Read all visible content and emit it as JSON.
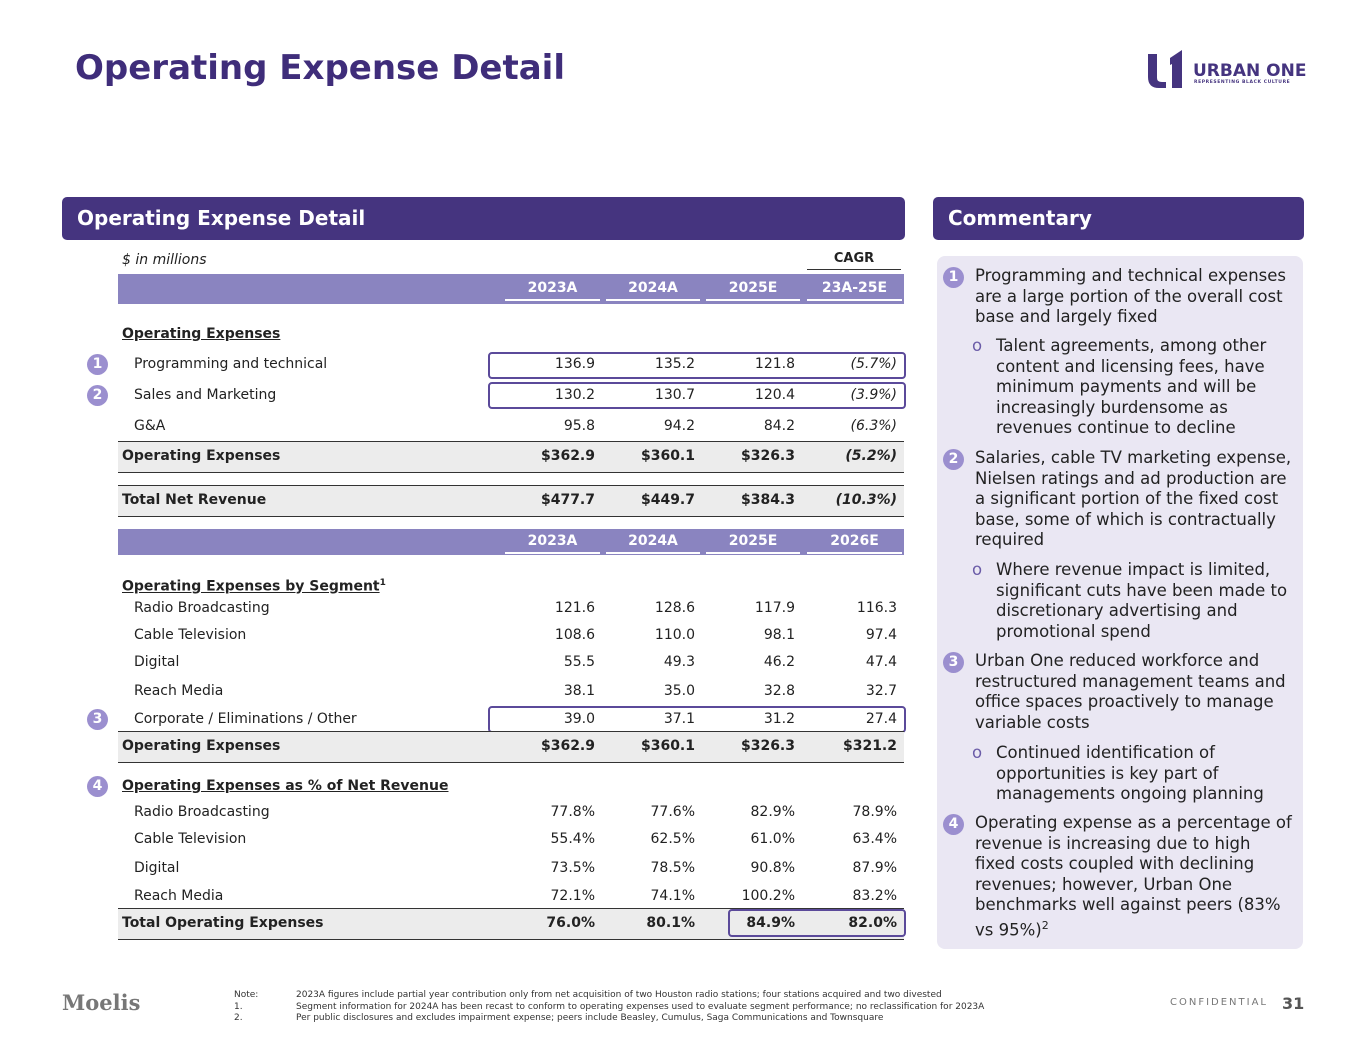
{
  "title": "Operating Expense Detail",
  "logo": {
    "name": "URBAN ONE",
    "tagline": "REPRESENTING BLACK CULTURE"
  },
  "left_panel": {
    "header": "Operating Expense Detail",
    "units": "$ in millions",
    "cagr_label": "CAGR",
    "table1": {
      "columns": [
        "2023A",
        "2024A",
        "2025E",
        "23A-25E"
      ],
      "heading": "Operating Expenses",
      "rows": [
        {
          "badge": "1",
          "label": "Programming and technical",
          "values": [
            "136.9",
            "135.2",
            "121.8",
            "(5.7%)"
          ]
        },
        {
          "badge": "2",
          "label": "Sales and Marketing",
          "values": [
            "130.2",
            "130.7",
            "120.4",
            "(3.9%)"
          ]
        },
        {
          "label": "G&A",
          "values": [
            "95.8",
            "94.2",
            "84.2",
            "(6.3%)"
          ]
        }
      ],
      "total": {
        "label": "Operating Expenses",
        "values": [
          "$362.9",
          "$360.1",
          "$326.3",
          "(5.2%)"
        ]
      },
      "revenue": {
        "label": "Total Net Revenue",
        "values": [
          "$477.7",
          "$449.7",
          "$384.3",
          "(10.3%)"
        ]
      }
    },
    "table2": {
      "columns": [
        "2023A",
        "2024A",
        "2025E",
        "2026E"
      ],
      "segment": {
        "heading": "Operating Expenses by Segment",
        "footnote": "1",
        "rows": [
          {
            "label": "Radio Broadcasting",
            "values": [
              "121.6",
              "128.6",
              "117.9",
              "116.3"
            ]
          },
          {
            "label": "Cable Television",
            "values": [
              "108.6",
              "110.0",
              "98.1",
              "97.4"
            ]
          },
          {
            "label": "Digital",
            "values": [
              "55.5",
              "49.3",
              "46.2",
              "47.4"
            ]
          },
          {
            "label": "Reach Media",
            "values": [
              "38.1",
              "35.0",
              "32.8",
              "32.7"
            ]
          },
          {
            "badge": "3",
            "label": "Corporate / Eliminations / Other",
            "values": [
              "39.0",
              "37.1",
              "31.2",
              "27.4"
            ]
          }
        ],
        "total": {
          "label": "Operating Expenses",
          "values": [
            "$362.9",
            "$360.1",
            "$326.3",
            "$321.2"
          ]
        }
      },
      "percent": {
        "badge": "4",
        "heading": "Operating Expenses as % of Net Revenue",
        "rows": [
          {
            "label": "Radio Broadcasting",
            "values": [
              "77.8%",
              "77.6%",
              "82.9%",
              "78.9%"
            ]
          },
          {
            "label": "Cable Television",
            "values": [
              "55.4%",
              "62.5%",
              "61.0%",
              "63.4%"
            ]
          },
          {
            "label": "Digital",
            "values": [
              "73.5%",
              "78.5%",
              "90.8%",
              "87.9%"
            ]
          },
          {
            "label": "Reach Media",
            "values": [
              "72.1%",
              "74.1%",
              "100.2%",
              "83.2%"
            ]
          }
        ],
        "total": {
          "label": "Total Operating Expenses",
          "values": [
            "76.0%",
            "80.1%",
            "84.9%",
            "82.0%"
          ]
        }
      }
    }
  },
  "commentary": {
    "header": "Commentary",
    "items": [
      {
        "number": "1",
        "text": "Programming and technical expenses are a large portion of the overall cost base and largely fixed",
        "bullet": "o",
        "sub": "Talent agreements, among other content and licensing fees, have minimum payments and will be increasingly burdensome as revenues continue to decline"
      },
      {
        "number": "2",
        "text": "Salaries, cable TV marketing expense, Nielsen ratings and ad production are a significant portion of the fixed cost base, some of which is contractually required",
        "bullet": "o",
        "sub": "Where revenue impact is limited, significant cuts have been made to discretionary advertising and promotional spend"
      },
      {
        "number": "3",
        "text": "Urban One reduced workforce and restructured management teams and office spaces proactively to manage variable costs",
        "bullet": "o",
        "sub": "Continued identification of opportunities is key part of managements ongoing planning"
      },
      {
        "number": "4",
        "text": "Operating expense as a percentage of revenue is increasing due to high fixed costs coupled with declining revenues; however, Urban One benchmarks well against peers (83% vs 95%)",
        "footnote": "2"
      }
    ]
  },
  "footer": {
    "brand": "Moelis",
    "notes": [
      {
        "marker": "Note:",
        "text": "2023A figures include partial year contribution only from net acquisition of two Houston radio stations; four stations acquired and two divested"
      },
      {
        "marker": "1.",
        "text": "Segment information for 2024A has been recast to conform to operating expenses used to evaluate segment performance; no reclassification for 2023A"
      },
      {
        "marker": "2.",
        "text": "Per public disclosures and excludes impairment expense; peers include Beasley, Cumulus, Saga Communications and Townsquare"
      }
    ],
    "confidential": "CONFIDENTIAL",
    "page": "31"
  }
}
